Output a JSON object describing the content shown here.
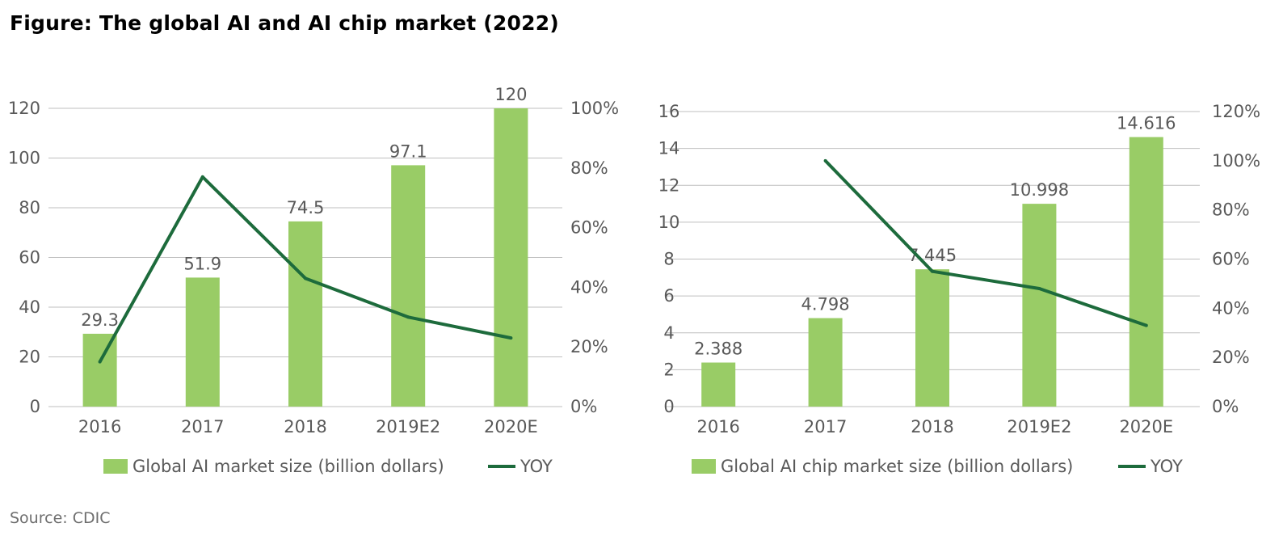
{
  "figure_title": "Figure: The global AI and AI chip market (2022)",
  "source": "Source: CDIC",
  "colors": {
    "bar": "#99cc66",
    "line": "#1d6b3c",
    "grid": "#bfbfbf",
    "text": "#595959"
  },
  "chart_data": [
    {
      "type": "bar",
      "title": "",
      "categories": [
        "2016",
        "2017",
        "2018",
        "2019E2",
        "2020E"
      ],
      "series": [
        {
          "name": "Global AI market size (billion dollars)",
          "type": "bar",
          "axis": "left",
          "values": [
            29.3,
            51.9,
            74.5,
            97.1,
            120
          ],
          "labels": [
            "29.3",
            "51.9",
            "74.5",
            "97.1",
            "120"
          ]
        },
        {
          "name": "YOY",
          "type": "line",
          "axis": "right",
          "values": [
            0.15,
            0.77,
            0.43,
            0.3,
            0.23
          ]
        }
      ],
      "ylim": [
        0,
        120
      ],
      "yticks": [
        "0",
        "20",
        "40",
        "60",
        "80",
        "100",
        "120"
      ],
      "y2lim": [
        0,
        1.0
      ],
      "y2ticks": [
        "0%",
        "20%",
        "40%",
        "60%",
        "80%",
        "100%"
      ],
      "grid": true,
      "legend": "bottom"
    },
    {
      "type": "bar",
      "title": "",
      "categories": [
        "2016",
        "2017",
        "2018",
        "2019E2",
        "2020E"
      ],
      "series": [
        {
          "name": "Global AI chip market size (billion dollars)",
          "type": "bar",
          "axis": "left",
          "values": [
            2.388,
            4.798,
            7.445,
            10.998,
            14.616
          ],
          "labels": [
            "2.388",
            "4.798",
            "7.445",
            "10.998",
            "14.616"
          ]
        },
        {
          "name": "YOY",
          "type": "line",
          "axis": "right",
          "values": [
            null,
            1.0,
            0.55,
            0.48,
            0.33
          ]
        }
      ],
      "ylim": [
        0,
        16
      ],
      "yticks": [
        "0",
        "2",
        "4",
        "6",
        "8",
        "10",
        "12",
        "14",
        "16"
      ],
      "y2lim": [
        0,
        1.2
      ],
      "y2ticks": [
        "0%",
        "20%",
        "40%",
        "60%",
        "80%",
        "100%",
        "120%"
      ],
      "grid": true,
      "legend": "bottom"
    }
  ]
}
